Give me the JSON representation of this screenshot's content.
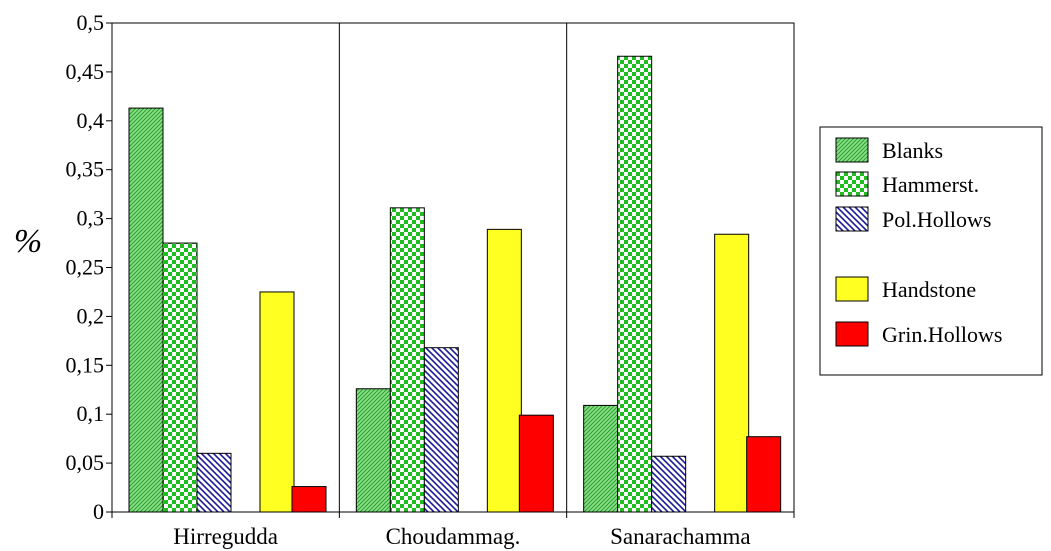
{
  "chart_data": {
    "type": "bar",
    "categories": [
      "Hirregudda",
      "Choudammag.",
      "Sanarachamma"
    ],
    "series": [
      {
        "name": "Blanks",
        "values": [
          0.413,
          0.126,
          0.109
        ],
        "color": "#6cd66c",
        "pattern": "fine-diagonal"
      },
      {
        "name": "Hammerst.",
        "values": [
          0.275,
          0.311,
          0.466
        ],
        "color": "#2fc22f",
        "pattern": "checker"
      },
      {
        "name": "Pol.Hollows",
        "values": [
          0.06,
          0.168,
          0.057
        ],
        "color": "#2222aa",
        "pattern": "diagonal-hatch"
      },
      {
        "name": "Handstone",
        "values": [
          0.225,
          0.289,
          0.284
        ],
        "color": "#ffff22",
        "pattern": "solid"
      },
      {
        "name": "Grin.Hollows",
        "values": [
          0.026,
          0.099,
          0.077
        ],
        "color": "#ff0000",
        "pattern": "solid"
      }
    ],
    "title": "",
    "xlabel": "",
    "ylabel": "%",
    "ylim": [
      0,
      0.5
    ],
    "yticks": [
      "0",
      "0,05",
      "0,1",
      "0,15",
      "0,2",
      "0,25",
      "0,3",
      "0,35",
      "0,4",
      "0,45",
      "0,5"
    ],
    "grid": false,
    "category_separators": true,
    "legend": {
      "placement": "right",
      "groups": [
        [
          "Blanks",
          "Hammerst.",
          "Pol.Hollows"
        ],
        [
          "Handstone",
          "Grin.Hollows"
        ]
      ]
    }
  }
}
